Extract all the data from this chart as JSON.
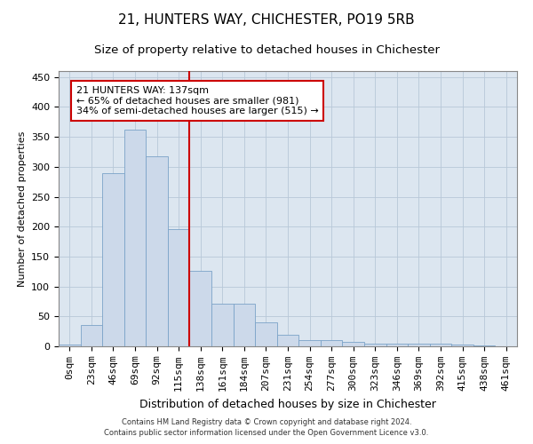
{
  "title1": "21, HUNTERS WAY, CHICHESTER, PO19 5RB",
  "title2": "Size of property relative to detached houses in Chichester",
  "xlabel": "Distribution of detached houses by size in Chichester",
  "ylabel": "Number of detached properties",
  "categories": [
    "0sqm",
    "23sqm",
    "46sqm",
    "69sqm",
    "92sqm",
    "115sqm",
    "138sqm",
    "161sqm",
    "184sqm",
    "207sqm",
    "231sqm",
    "254sqm",
    "277sqm",
    "300sqm",
    "323sqm",
    "346sqm",
    "369sqm",
    "392sqm",
    "415sqm",
    "438sqm",
    "461sqm"
  ],
  "values": [
    3,
    36,
    290,
    362,
    317,
    196,
    126,
    71,
    71,
    40,
    20,
    11,
    11,
    7,
    4,
    4,
    5,
    4,
    3,
    1,
    0
  ],
  "bar_color": "#ccd9ea",
  "bar_edge_color": "#7ba3c8",
  "vline_x": 5.5,
  "vline_color": "#cc0000",
  "annotation_text": "21 HUNTERS WAY: 137sqm\n← 65% of detached houses are smaller (981)\n34% of semi-detached houses are larger (515) →",
  "annotation_box_color": "#ffffff",
  "annotation_box_edge_color": "#cc0000",
  "grid_color": "#b8c8d8",
  "bg_color": "#dce6f0",
  "footer1": "Contains HM Land Registry data © Crown copyright and database right 2024.",
  "footer2": "Contains public sector information licensed under the Open Government Licence v3.0.",
  "ylim": [
    0,
    460
  ],
  "yticks": [
    0,
    50,
    100,
    150,
    200,
    250,
    300,
    350,
    400,
    450
  ],
  "title1_fontsize": 11,
  "title2_fontsize": 9.5,
  "xlabel_fontsize": 9,
  "ylabel_fontsize": 8,
  "tick_fontsize": 8,
  "annotation_fontsize": 8,
  "footer_fontsize": 6
}
